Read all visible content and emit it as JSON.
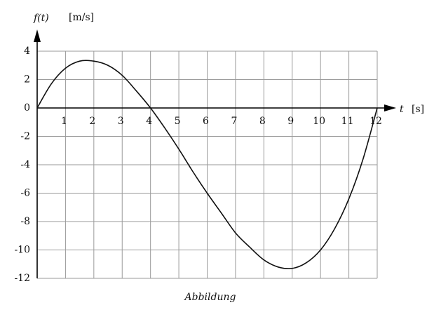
{
  "chart_data": {
    "type": "line",
    "y_label": "f(t)",
    "y_unit": "[m/s]",
    "x_label": "t",
    "x_unit": "[s]",
    "caption": "Abbildung",
    "x": [
      0,
      0.5,
      1,
      1.5,
      2,
      2.5,
      3,
      3.5,
      4,
      4.5,
      5,
      5.5,
      6,
      6.5,
      7,
      7.5,
      8,
      8.5,
      9,
      9.5,
      10,
      10.5,
      11,
      11.5,
      12
    ],
    "series": [
      {
        "color": "#111111",
        "values": [
          0,
          1.7,
          2.8,
          3.3,
          3.3,
          3.0,
          2.3,
          1.2,
          0,
          -1.4,
          -2.9,
          -4.5,
          -6,
          -7.4,
          -8.8,
          -9.8,
          -10.7,
          -11.2,
          -11.3,
          -10.9,
          -10,
          -8.5,
          -6.4,
          -3.6,
          0
        ]
      }
    ],
    "xlim": [
      0,
      12
    ],
    "xticks": [
      1,
      2,
      3,
      4,
      5,
      6,
      7,
      8,
      9,
      10,
      11,
      12
    ],
    "ylim": [
      -12,
      4
    ],
    "yticks": [
      4,
      2,
      0,
      -2,
      -4,
      -6,
      -8,
      -10,
      -12
    ],
    "grid": true
  }
}
